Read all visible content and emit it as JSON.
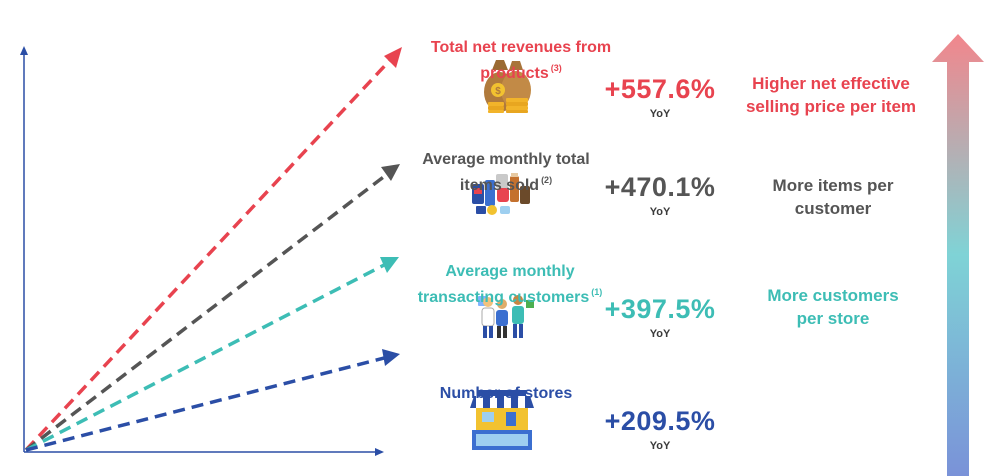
{
  "rows": [
    {
      "key": "revenue",
      "label": "Total net revenues from\nproducts",
      "footnote": "(3)",
      "change": "+557.6%",
      "yoy": "YoY",
      "explanation": "Higher net effective\nselling price per item",
      "color": "#e8434f",
      "icon": "money-bags-icon"
    },
    {
      "key": "items",
      "label": "Average monthly total\nitems sold",
      "footnote": "(2)",
      "change": "+470.1%",
      "yoy": "YoY",
      "explanation": "More items per\ncustomer",
      "color": "#555555",
      "icon": "products-icon"
    },
    {
      "key": "customers",
      "label": "Average monthly\ntransacting customers",
      "footnote": "(1)",
      "change": "+397.5%",
      "yoy": "YoY",
      "explanation": "More customers\nper store",
      "color": "#3dbdb5",
      "icon": "customers-icon"
    },
    {
      "key": "stores",
      "label": "Number of stores",
      "footnote": "",
      "change": "+209.5%",
      "yoy": "YoY",
      "explanation": "",
      "color": "#2b4ea6",
      "icon": "storefront-icon"
    }
  ],
  "gradient_arrow": {
    "top_color": "#f2868c",
    "mid_color": "#7fd3d6",
    "bottom_color": "#7a92d8"
  }
}
